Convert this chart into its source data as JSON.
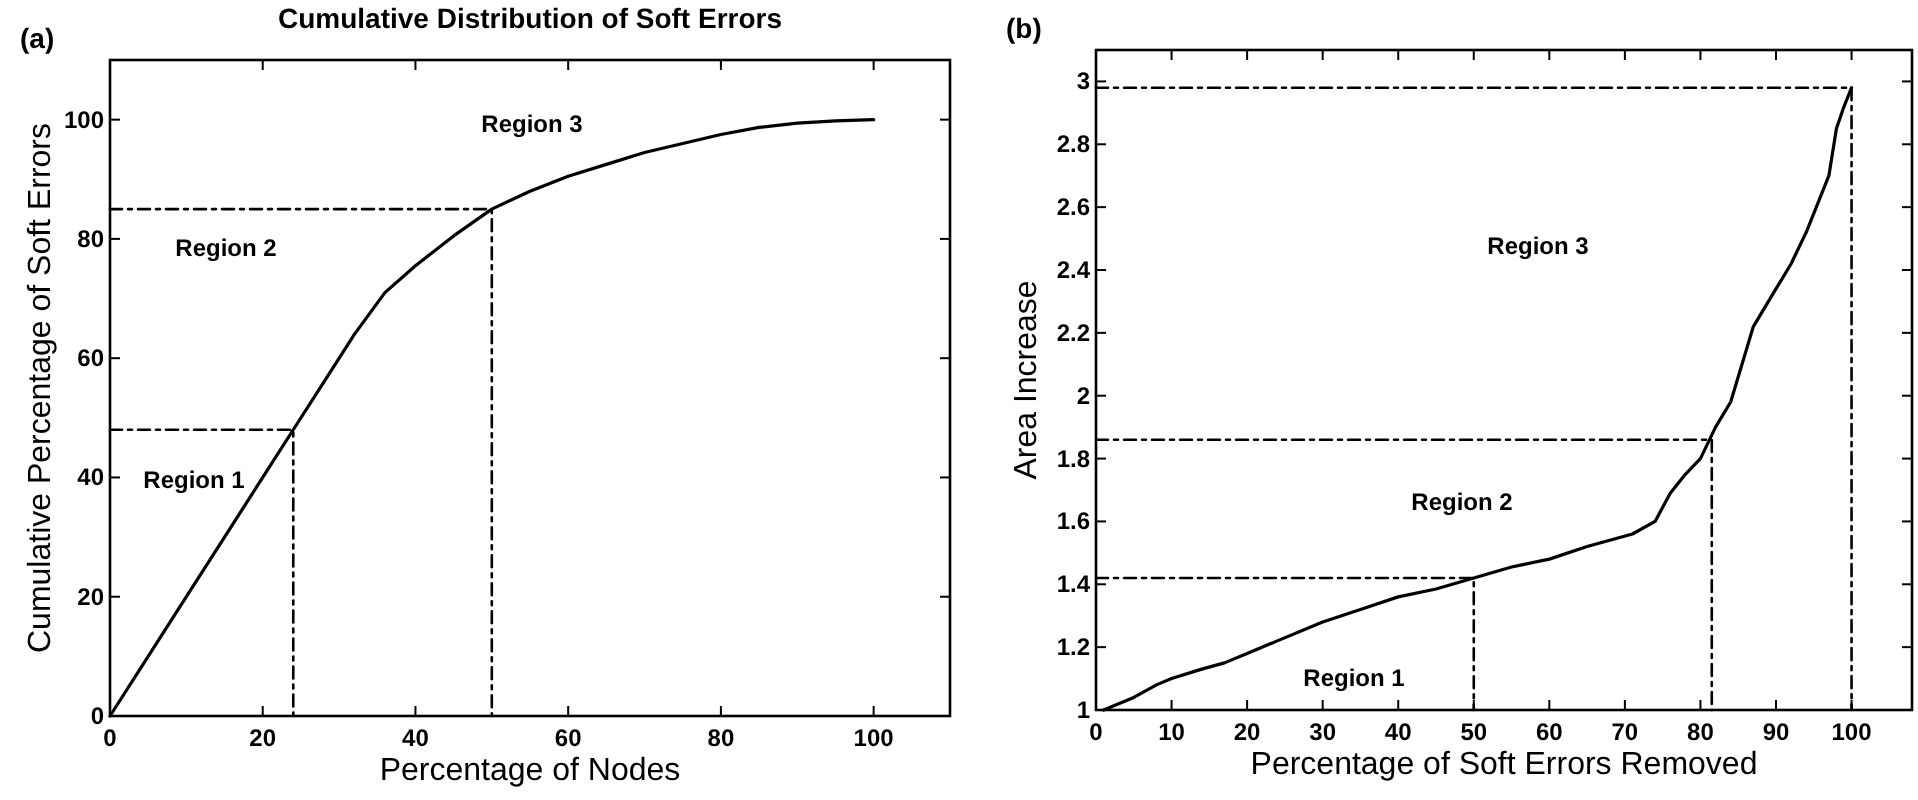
{
  "chart_data": [
    {
      "type": "line",
      "title": "Cumulative Distribution of Soft Errors",
      "xlabel": "Percentage of Nodes",
      "ylabel": "Cumulative Percentage of Soft Errors",
      "xlim": [
        0,
        110
      ],
      "ylim": [
        0,
        110
      ],
      "xticks": [
        0,
        20,
        40,
        60,
        80,
        100
      ],
      "yticks": [
        0,
        20,
        40,
        60,
        80,
        100
      ],
      "annotations": [
        "(a)",
        "Region 1",
        "Region 2",
        "Region 3"
      ],
      "series": [
        {
          "color": "#000000",
          "line_style": "solid",
          "x": [
            0,
            5,
            10,
            15,
            20,
            24,
            28,
            32,
            36,
            40,
            45,
            50,
            55,
            60,
            65,
            70,
            75,
            80,
            85,
            90,
            95,
            100
          ],
          "values": [
            0,
            10,
            20,
            30,
            40,
            48,
            56,
            64,
            71,
            75.5,
            80.5,
            85,
            88,
            90.5,
            92.5,
            94.5,
            96,
            97.5,
            98.7,
            99.4,
            99.8,
            100
          ]
        },
        {
          "color": "#000000",
          "line_style": "dashed",
          "x": [
            0,
            24,
            24
          ],
          "values": [
            48,
            48,
            0
          ]
        },
        {
          "color": "#000000",
          "line_style": "dashed",
          "x": [
            0,
            50,
            50
          ],
          "values": [
            85,
            85,
            0
          ]
        }
      ]
    },
    {
      "type": "line",
      "xlabel": "Percentage of Soft Errors Removed",
      "ylabel": "Area Increase",
      "xlim": [
        0,
        108
      ],
      "ylim": [
        1,
        3.1
      ],
      "xticks": [
        0,
        10,
        20,
        30,
        40,
        50,
        60,
        70,
        80,
        90,
        100
      ],
      "yticks": [
        1,
        1.2,
        1.4,
        1.6,
        1.8,
        2,
        2.2,
        2.4,
        2.6,
        2.8,
        3
      ],
      "annotations": [
        "(b)",
        "Region 1",
        "Region 2",
        "Region 3"
      ],
      "series": [
        {
          "color": "#000000",
          "line_style": "solid",
          "x": [
            1,
            5,
            8,
            10,
            14,
            17,
            20,
            24,
            30,
            35,
            40,
            45,
            50,
            55,
            60,
            65,
            71,
            74,
            76,
            78,
            80,
            82,
            84,
            86,
            87,
            89,
            92,
            94,
            97,
            98,
            99,
            100
          ],
          "values": [
            1,
            1.04,
            1.08,
            1.1,
            1.13,
            1.15,
            1.18,
            1.22,
            1.28,
            1.32,
            1.36,
            1.385,
            1.42,
            1.455,
            1.48,
            1.52,
            1.56,
            1.6,
            1.69,
            1.75,
            1.8,
            1.9,
            1.98,
            2.14,
            2.22,
            2.3,
            2.42,
            2.52,
            2.7,
            2.85,
            2.92,
            2.98
          ]
        },
        {
          "color": "#000000",
          "line_style": "dashed",
          "x": [
            0,
            50,
            50
          ],
          "values": [
            1.42,
            1.42,
            1
          ]
        },
        {
          "color": "#000000",
          "line_style": "dashed",
          "x": [
            0,
            81.5,
            81.5
          ],
          "values": [
            1.86,
            1.86,
            1
          ]
        },
        {
          "color": "#000000",
          "line_style": "dashed",
          "x": [
            0,
            100,
            100
          ],
          "values": [
            2.98,
            2.98,
            1
          ]
        }
      ]
    }
  ]
}
